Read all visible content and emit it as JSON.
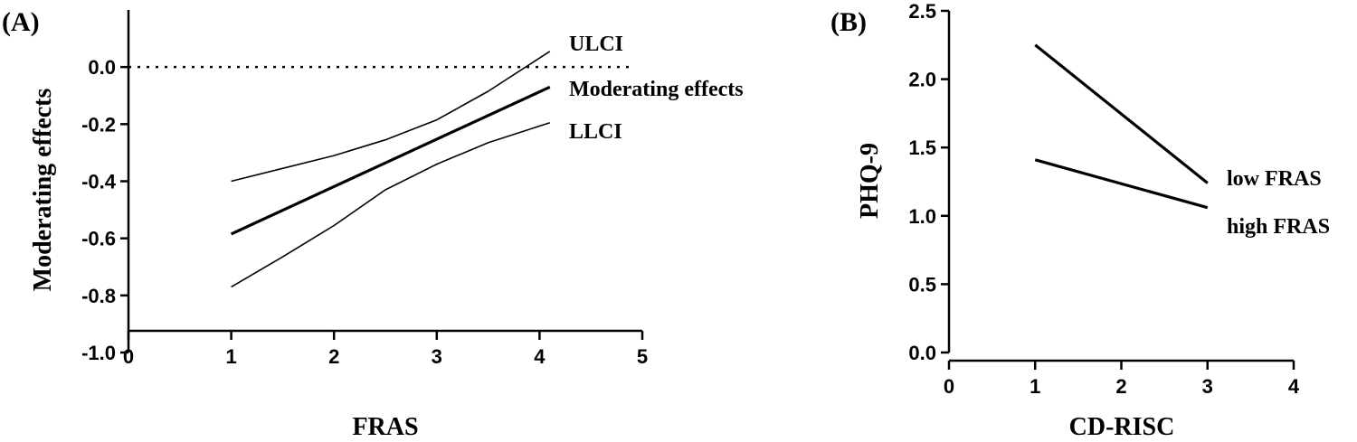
{
  "chart_data": [
    {
      "panel_label": "(A)",
      "type": "line",
      "xlabel": "FRAS",
      "ylabel": "Moderating effects",
      "xlim": [
        0,
        5
      ],
      "ylim": [
        -1.0,
        0.2
      ],
      "xticks": [
        "0",
        "1",
        "2",
        "3",
        "4",
        "5"
      ],
      "yticks": [
        "-1.0",
        "-0.8",
        "-0.6",
        "-0.4",
        "-0.2",
        "0.0"
      ],
      "reference_line": {
        "y": 0.0,
        "style": "dotted"
      },
      "series": [
        {
          "name": "ULCI",
          "x": [
            1,
            1.5,
            2,
            2.5,
            3,
            3.5,
            4.1
          ],
          "y": [
            -0.4,
            -0.355,
            -0.31,
            -0.255,
            -0.185,
            -0.085,
            0.055
          ],
          "weight": "thin"
        },
        {
          "name": "Moderating effects",
          "x": [
            1,
            4.1
          ],
          "y": [
            -0.585,
            -0.07
          ],
          "weight": "thick"
        },
        {
          "name": "LLCI",
          "x": [
            1,
            1.5,
            2,
            2.5,
            3,
            3.5,
            4.1
          ],
          "y": [
            -0.77,
            -0.665,
            -0.555,
            -0.43,
            -0.34,
            -0.265,
            -0.195
          ],
          "weight": "thin"
        }
      ]
    },
    {
      "panel_label": "(B)",
      "type": "line",
      "xlabel": "CD-RISC",
      "ylabel": "PHQ-9",
      "xlim": [
        0,
        4
      ],
      "ylim": [
        0,
        2.5
      ],
      "xticks": [
        "0",
        "1",
        "2",
        "3",
        "4"
      ],
      "yticks": [
        "0.0",
        "0.5",
        "1.0",
        "1.5",
        "2.0",
        "2.5"
      ],
      "series": [
        {
          "name": "low FRAS",
          "x": [
            1,
            3
          ],
          "y": [
            2.25,
            1.24
          ]
        },
        {
          "name": "high FRAS",
          "x": [
            1,
            3
          ],
          "y": [
            1.41,
            1.06
          ]
        }
      ]
    }
  ]
}
